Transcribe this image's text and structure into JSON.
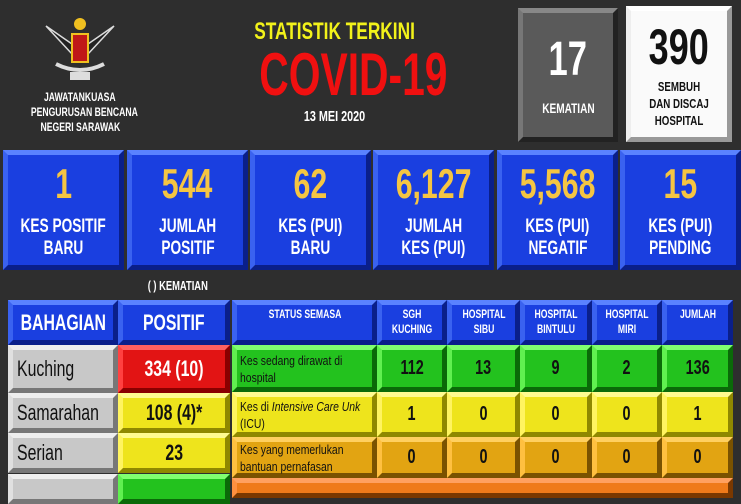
{
  "header": {
    "org_line1": "JAWATANKUASA",
    "org_line2": "PENGURUSAN BENCANA",
    "org_line3": "NEGERI SARAWAK",
    "subtitle": "STATISTIK TERKINI",
    "title": "COVID-19",
    "date": "13 MEI 2020"
  },
  "top_boxes": [
    {
      "value": "17",
      "label": "KEMATIAN"
    },
    {
      "value": "390",
      "label": "SEMBUH DAN DISCAJ HOSPITAL"
    }
  ],
  "stats": [
    {
      "value": "1",
      "label1": "KES POSITIF",
      "label2": "BARU"
    },
    {
      "value": "544",
      "label1": "JUMLAH",
      "label2": "POSITIF"
    },
    {
      "value": "62",
      "label1": "KES (PUI)",
      "label2": "BARU"
    },
    {
      "value": "6,127",
      "label1": "JUMLAH",
      "label2": "KES (PUI)"
    },
    {
      "value": "5,568",
      "label1": "KES (PUI)",
      "label2": "NEGATIF"
    },
    {
      "value": "15",
      "label1": "KES (PUI)",
      "label2": "PENDING"
    }
  ],
  "legend_note": "( ) KEMATIAN",
  "division_table": {
    "headers": [
      "BAHAGIAN",
      "POSITIF"
    ],
    "rows": [
      {
        "division": "Kuching",
        "positive": "334 (10)",
        "color": "#e21414"
      },
      {
        "division": "Samarahan",
        "positive": "108 (4)*",
        "color": "#eee41c"
      },
      {
        "division": "Serian",
        "positive": "23",
        "color": "#eee41c"
      }
    ]
  },
  "hospital_table": {
    "headers": [
      "STATUS SEMASA",
      "SGH KUCHING",
      "HOSPITAL SIBU",
      "HOSPITAL BINTULU",
      "HOSPITAL MIRI",
      "JUMLAH"
    ],
    "rows": [
      {
        "status_pre": "Kes sedang dirawat di hospital",
        "status_italic": "",
        "status_post": "",
        "values": [
          "112",
          "13",
          "9",
          "2",
          "136"
        ],
        "color": "green"
      },
      {
        "status_pre": "Kes di ",
        "status_italic": "Intensive Care Unk",
        "status_post": " (ICU)",
        "values": [
          "1",
          "0",
          "0",
          "0",
          "1"
        ],
        "color": "yellow"
      },
      {
        "status_pre": "Kes yang memerlukan bantuan pernafasan",
        "status_italic": "",
        "status_post": "",
        "values": [
          "0",
          "0",
          "0",
          "0",
          "0"
        ],
        "color": "orange"
      }
    ]
  },
  "colors": {
    "blue": "#1a3fe0",
    "gold": "#f5c542",
    "red_title": "#f01010",
    "yellow_title": "#f2f21a"
  }
}
